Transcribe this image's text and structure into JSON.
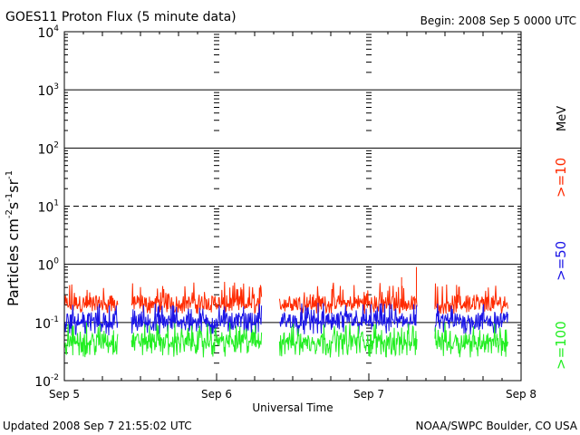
{
  "header": {
    "title": "GOES11 Proton Flux (5 minute data)",
    "begin": "Begin: 2008 Sep 5 0000 UTC"
  },
  "footer": {
    "updated": "Updated 2008 Sep  7 21:55:02 UTC",
    "credit": "NOAA/SWPC Boulder, CO USA"
  },
  "colors": {
    "ge10": "#ff2a00",
    "ge50": "#1a14e6",
    "ge100": "#22ee22",
    "axis": "#000000"
  },
  "chart_data": {
    "type": "line",
    "title": "GOES11 Proton Flux (5 minute data)",
    "xlabel": "Universal Time",
    "ylabel_base": "Particles cm",
    "ylabel_units": [
      "-2",
      "s",
      "-1",
      "sr",
      "-1"
    ],
    "yscale": "log",
    "ylim": [
      0.01,
      10000
    ],
    "yticks": [
      {
        "value": 10000,
        "base": "10",
        "exp": "4"
      },
      {
        "value": 1000,
        "base": "10",
        "exp": "3"
      },
      {
        "value": 100,
        "base": "10",
        "exp": "2"
      },
      {
        "value": 10,
        "base": "10",
        "exp": "1"
      },
      {
        "value": 1,
        "base": "10",
        "exp": "0"
      },
      {
        "value": 0.1,
        "base": "10",
        "exp": "-1"
      },
      {
        "value": 0.01,
        "base": "10",
        "exp": "-2"
      }
    ],
    "xlim": [
      "2008-09-05 00:00",
      "2008-09-08 00:00"
    ],
    "xticks": [
      "Sep 5",
      "Sep 6",
      "Sep 7",
      "Sep 8"
    ],
    "data_gaps": [
      [
        "2008-09-05 08:30",
        "2008-09-05 10:30"
      ],
      [
        "2008-09-06 07:10",
        "2008-09-06 09:50"
      ],
      [
        "2008-09-07 07:40",
        "2008-09-07 10:20"
      ]
    ],
    "data_end": "2008-09-07 21:55",
    "right_label_units": "MeV",
    "series": [
      {
        "name": ">=10",
        "color": "#ff2a00",
        "typical": 0.22,
        "min": 0.14,
        "max": 0.5,
        "spikes": [
          {
            "time": "2008-09-07 05:10",
            "value": 0.6
          },
          {
            "time": "2008-09-07 07:30",
            "value": 0.9
          }
        ]
      },
      {
        "name": ">=50",
        "color": "#1a14e6",
        "typical": 0.11,
        "min": 0.06,
        "max": 0.22,
        "spikes": []
      },
      {
        "name": ">=100",
        "color": "#22ee22",
        "typical": 0.05,
        "min": 0.025,
        "max": 0.1,
        "spikes": []
      }
    ]
  }
}
